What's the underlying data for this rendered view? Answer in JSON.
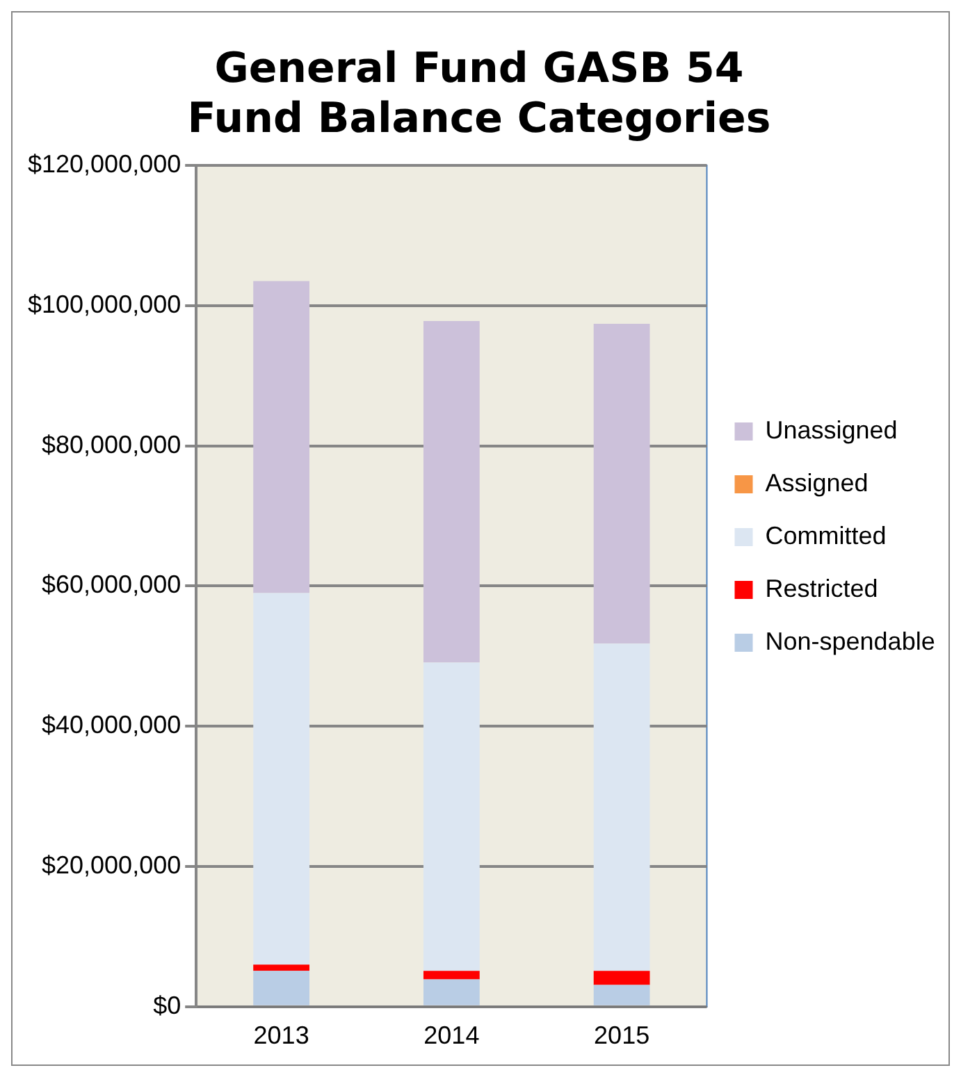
{
  "chart_data": {
    "type": "bar",
    "title": "General Fund GASB 54 Fund Balance Categories",
    "categories": [
      "2013",
      "2014",
      "2015"
    ],
    "stacked": true,
    "series": [
      {
        "name": "Non-spendable",
        "color": "#b9cde5",
        "values": [
          5100000,
          3900000,
          3100000
        ]
      },
      {
        "name": "Restricted",
        "color": "#ff0000",
        "values": [
          900000,
          1200000,
          2000000
        ]
      },
      {
        "name": "Committed",
        "color": "#dce6f2",
        "values": [
          53000000,
          44000000,
          46700000
        ]
      },
      {
        "name": "Assigned",
        "color": "#f79646",
        "values": [
          0,
          0,
          0
        ]
      },
      {
        "name": "Unassigned",
        "color": "#ccc1da",
        "values": [
          44500000,
          48700000,
          45600000
        ]
      }
    ],
    "ylim": [
      0,
      120000000
    ],
    "yticks": [
      {
        "value": 0,
        "label": "$0"
      },
      {
        "value": 20000000,
        "label": "$20,000,000"
      },
      {
        "value": 40000000,
        "label": "$40,000,000"
      },
      {
        "value": 60000000,
        "label": "$60,000,000"
      },
      {
        "value": 80000000,
        "label": "$80,000,000"
      },
      {
        "value": 100000000,
        "label": "$100,000,000"
      },
      {
        "value": 120000000,
        "label": "$120,000,000"
      }
    ],
    "grid": "y",
    "legend": "right"
  }
}
